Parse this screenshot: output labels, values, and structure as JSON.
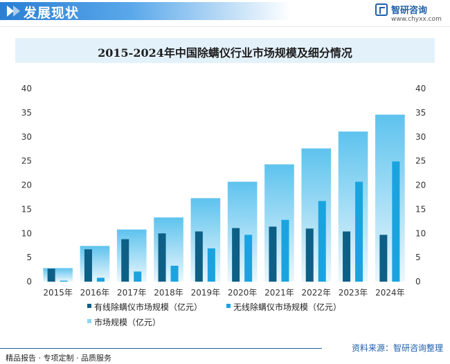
{
  "header": {
    "title": "发展现状"
  },
  "brand": {
    "name": "智研咨询",
    "url": "www.chyxx.com"
  },
  "footer": {
    "left_text": "精品报告 · 专项定制 · 品质服务",
    "source": "资料来源：智研咨询整理"
  },
  "colors": {
    "wired": "#0e5f86",
    "wireless": "#1ba3e0",
    "market_top": "#5ec3ee",
    "market_bottom": "#eaf7fd",
    "header": "#2a7fd4"
  },
  "chart_data": {
    "type": "bar",
    "title": "2015-2024年中国除螨仪行业市场规模及细分情况",
    "categories": [
      "2015年",
      "2016年",
      "2017年",
      "2018年",
      "2019年",
      "2020年",
      "2021年",
      "2022年",
      "2023年",
      "2024年"
    ],
    "series": [
      {
        "name": "市场规模（亿元）",
        "values": [
          2.8,
          7.4,
          10.8,
          13.3,
          17.3,
          20.7,
          24.3,
          27.6,
          31.1,
          34.6
        ]
      },
      {
        "name": "有线除螨仪市场规模（亿元）",
        "values": [
          2.7,
          6.7,
          8.8,
          10.0,
          10.4,
          11.1,
          11.4,
          11.0,
          10.4,
          9.7
        ]
      },
      {
        "name": "无线除螨仪市场规模（亿元）",
        "values": [
          0.2,
          0.8,
          2.1,
          3.3,
          6.9,
          9.7,
          12.8,
          16.7,
          20.7,
          24.9
        ]
      }
    ],
    "ylim": [
      0,
      40
    ],
    "yticks": [
      0,
      5,
      10,
      15,
      20,
      25,
      30,
      35,
      40
    ],
    "grid": false,
    "legend_position": "bottom"
  }
}
